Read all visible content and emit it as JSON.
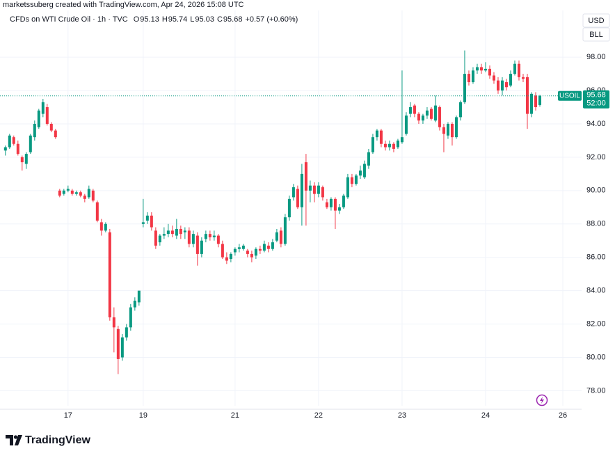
{
  "chart_data": {
    "type": "candlestick",
    "attribution": "marketssuberg created with TradingView.com, Apr 24, 2026 15:08 UTC",
    "instrument": "CFDs on WTI Crude Oil · 1h · TVC",
    "ohlc_letters": [
      "O",
      "H",
      "L",
      "C"
    ],
    "change_label": "+0.57 (+0.60%)",
    "currency": "USD",
    "unit": "BLL",
    "symbol": "USOIL",
    "countdown": "52:00",
    "brand": "TradingView",
    "up_color": "#089981",
    "down_color": "#f23645",
    "grid": true,
    "ylim": [
      77.1,
      100.8
    ],
    "yticks": [
      {
        "value": 78,
        "label": "78.00"
      },
      {
        "value": 80,
        "label": "80.00"
      },
      {
        "value": 82,
        "label": "82.00"
      },
      {
        "value": 84,
        "label": "84.00"
      },
      {
        "value": 86,
        "label": "86.00"
      },
      {
        "value": 88,
        "label": "88.00"
      },
      {
        "value": 90,
        "label": "90.00"
      },
      {
        "value": 92,
        "label": "92.00"
      },
      {
        "value": 94,
        "label": "94.00"
      },
      {
        "value": 96,
        "label": "96.00"
      },
      {
        "value": 98,
        "label": "98.00"
      }
    ],
    "xlim": [
      -1.3,
      138
    ],
    "xticks": [
      {
        "value": 15,
        "label": "17"
      },
      {
        "value": 33,
        "label": "19"
      },
      {
        "value": 55,
        "label": "21"
      },
      {
        "value": 75,
        "label": "22"
      },
      {
        "value": 95,
        "label": "23"
      },
      {
        "value": 115,
        "label": "24"
      },
      {
        "value": 133.5,
        "label": "26"
      }
    ],
    "open": [
      92.4,
      92.6,
      93.2,
      92.8,
      92.0,
      91.6,
      92.3,
      93.2,
      93.8,
      94.6,
      95.0,
      94.0,
      93.6,
      90.0,
      89.8,
      90.0,
      90.0,
      89.8,
      89.9,
      89.7,
      89.6,
      90.0,
      89.3,
      88.1,
      87.6,
      87.5,
      82.4,
      81.7,
      80.0,
      81.2,
      81.8,
      83.0,
      83.3,
      88.0,
      88.2,
      88.5,
      87.6,
      86.9,
      87.3,
      87.4,
      87.6,
      87.3,
      87.7,
      87.5,
      87.6,
      86.8,
      87.3,
      86.2,
      87.1,
      87.4,
      87.2,
      87.3,
      86.8,
      86.0,
      85.9,
      86.3,
      86.5,
      86.5,
      86.4,
      86.2,
      86.1,
      86.5,
      86.4,
      86.7,
      86.5,
      87.0,
      87.6,
      86.8,
      88.4,
      89.6,
      90.1,
      89.0,
      91.7,
      90.0,
      90.3,
      89.8,
      90.2,
      89.3,
      89.0,
      89.5,
      88.8,
      89.0,
      89.6,
      90.8,
      90.4,
      90.9,
      90.8,
      91.5,
      92.3,
      93.2,
      93.6,
      92.8,
      92.6,
      92.8,
      92.6,
      92.9,
      93.4,
      94.6,
      95.1,
      94.6,
      94.2,
      94.5,
      94.9,
      94.2,
      95.0,
      93.8,
      93.3,
      94.0,
      93.2,
      94.4,
      95.3,
      97.0,
      96.5,
      97.2,
      97.4,
      97.2,
      97.3,
      96.9,
      96.6,
      96.0,
      96.5,
      96.3,
      97.0,
      97.6,
      96.8,
      96.8,
      94.6,
      95.7,
      95.13
    ],
    "high": [
      92.7,
      93.4,
      93.3,
      93.0,
      92.1,
      92.3,
      93.4,
      94.2,
      94.9,
      95.5,
      95.2,
      94.1,
      93.7,
      90.1,
      90.1,
      90.3,
      90.1,
      90.0,
      90.0,
      89.8,
      90.3,
      90.1,
      89.4,
      88.3,
      88.1,
      87.7,
      83.0,
      81.9,
      81.4,
      82.0,
      83.2,
      83.6,
      84.0,
      89.5,
      88.7,
      88.7,
      87.8,
      87.4,
      87.8,
      88.0,
      87.9,
      88.3,
      87.9,
      87.8,
      87.8,
      87.6,
      87.5,
      87.2,
      87.6,
      87.6,
      87.6,
      87.4,
      87.0,
      86.3,
      86.3,
      86.6,
      86.8,
      86.8,
      86.5,
      86.4,
      86.6,
      86.7,
      87.0,
      86.9,
      87.1,
      87.7,
      87.8,
      88.6,
      89.7,
      90.4,
      90.3,
      91.6,
      92.2,
      90.6,
      90.5,
      90.5,
      90.3,
      89.5,
      89.6,
      89.6,
      89.2,
      89.8,
      91.0,
      91.0,
      91.0,
      91.5,
      91.8,
      92.5,
      93.4,
      93.7,
      93.7,
      93.0,
      93.0,
      92.9,
      93.1,
      97.2,
      94.7,
      95.3,
      95.2,
      94.7,
      94.6,
      95.0,
      95.0,
      95.7,
      95.1,
      94.0,
      94.1,
      94.1,
      94.5,
      95.4,
      98.4,
      97.2,
      97.4,
      97.6,
      97.6,
      97.7,
      97.5,
      97.1,
      96.8,
      96.8,
      96.7,
      97.2,
      97.8,
      97.8,
      97.0,
      97.0,
      95.9,
      95.9,
      95.74
    ],
    "low": [
      92.1,
      92.5,
      92.7,
      92.1,
      91.2,
      91.3,
      92.2,
      93.0,
      93.7,
      94.4,
      93.9,
      93.5,
      93.1,
      89.6,
      89.7,
      89.9,
      89.7,
      89.7,
      89.6,
      89.3,
      89.5,
      89.3,
      88.1,
      87.3,
      87.5,
      82.2,
      80.3,
      79.0,
      79.8,
      81.0,
      81.6,
      82.8,
      83.1,
      87.8,
      88.0,
      87.6,
      86.5,
      86.7,
      87.1,
      87.2,
      87.2,
      87.1,
      87.1,
      87.1,
      86.6,
      86.6,
      85.5,
      86.0,
      86.9,
      87.0,
      87.0,
      86.6,
      85.9,
      85.6,
      85.7,
      86.1,
      86.3,
      86.4,
      86.0,
      85.7,
      85.9,
      86.2,
      86.3,
      86.3,
      86.4,
      86.9,
      86.6,
      86.7,
      88.2,
      89.4,
      88.9,
      87.9,
      87.9,
      89.3,
      89.3,
      89.6,
      89.4,
      88.9,
      88.8,
      87.7,
      88.6,
      88.9,
      89.5,
      90.2,
      90.3,
      90.7,
      90.7,
      91.3,
      92.2,
      93.0,
      92.6,
      92.4,
      92.4,
      92.3,
      92.5,
      92.8,
      93.3,
      94.4,
      94.4,
      94.0,
      94.0,
      94.3,
      94.2,
      94.1,
      93.6,
      92.3,
      93.1,
      92.7,
      93.1,
      94.2,
      95.2,
      96.3,
      96.4,
      97.0,
      97.0,
      97.1,
      96.7,
      96.4,
      95.8,
      95.7,
      96.0,
      96.2,
      96.9,
      96.6,
      96.5,
      93.7,
      94.4,
      94.8,
      95.03
    ],
    "close": [
      92.6,
      93.3,
      92.8,
      92.2,
      91.7,
      92.2,
      93.3,
      94.0,
      94.8,
      95.3,
      94.0,
      93.6,
      93.2,
      89.7,
      90.0,
      90.1,
      89.8,
      89.9,
      89.7,
      89.5,
      90.1,
      89.4,
      88.2,
      87.6,
      88.0,
      82.4,
      81.8,
      79.9,
      81.2,
      81.8,
      83.0,
      83.4,
      84.0,
      88.1,
      88.5,
      87.8,
      86.7,
      87.3,
      87.4,
      87.6,
      87.4,
      87.7,
      87.4,
      87.6,
      86.8,
      87.4,
      86.2,
      87.0,
      87.4,
      87.2,
      87.3,
      86.8,
      86.0,
      85.8,
      86.2,
      86.5,
      86.6,
      86.7,
      86.2,
      86.0,
      86.5,
      86.4,
      86.8,
      86.5,
      86.9,
      87.5,
      86.8,
      88.4,
      89.5,
      90.2,
      89.0,
      91.0,
      90.0,
      90.3,
      89.8,
      90.3,
      89.6,
      89.0,
      89.5,
      88.8,
      89.0,
      89.7,
      90.8,
      90.4,
      90.9,
      91.2,
      91.6,
      92.3,
      93.2,
      93.6,
      92.8,
      92.6,
      92.8,
      92.5,
      93.0,
      93.2,
      94.5,
      95.0,
      94.6,
      94.2,
      94.5,
      94.8,
      94.3,
      95.1,
      93.8,
      93.4,
      94.0,
      93.2,
      94.4,
      95.3,
      97.0,
      96.5,
      97.2,
      97.4,
      97.2,
      97.3,
      96.9,
      96.6,
      96.0,
      96.6,
      96.2,
      97.0,
      97.6,
      96.8,
      96.7,
      94.6,
      95.8,
      95.0,
      95.68
    ]
  }
}
